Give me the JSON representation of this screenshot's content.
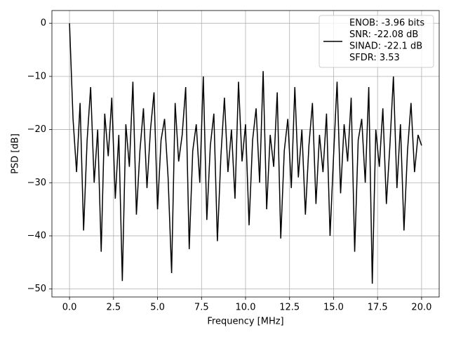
{
  "chart_data": {
    "type": "line",
    "xlabel": "Frequency [MHz]",
    "ylabel": "PSD [dB]",
    "x": [
      0,
      0.2,
      0.4,
      0.6,
      0.8,
      1,
      1.2,
      1.4,
      1.6,
      1.8,
      2,
      2.2,
      2.4,
      2.6,
      2.8,
      3,
      3.2,
      3.4,
      3.6,
      3.8,
      4,
      4.2,
      4.4,
      4.6,
      4.8,
      5,
      5.2,
      5.4,
      5.6,
      5.8,
      6,
      6.2,
      6.4,
      6.6,
      6.8,
      7,
      7.2,
      7.4,
      7.6,
      7.8,
      8,
      8.2,
      8.4,
      8.6,
      8.8,
      9,
      9.2,
      9.4,
      9.6,
      9.8,
      10,
      10.2,
      10.4,
      10.6,
      10.8,
      11,
      11.2,
      11.4,
      11.6,
      11.8,
      12,
      12.2,
      12.4,
      12.6,
      12.8,
      13,
      13.2,
      13.4,
      13.6,
      13.8,
      14,
      14.2,
      14.4,
      14.6,
      14.8,
      15,
      15.2,
      15.4,
      15.6,
      15.8,
      16,
      16.2,
      16.4,
      16.6,
      16.8,
      17,
      17.2,
      17.4,
      17.6,
      17.8,
      18,
      18.2,
      18.4,
      18.6,
      18.8,
      19,
      19.2,
      19.4,
      19.6,
      19.8,
      20
    ],
    "series": [
      {
        "name": [
          "ENOB: -3.96 bits",
          "SNR: -22.08 dB",
          "SINAD: -22.1 dB",
          "SFDR: 3.53"
        ],
        "color": "#000000",
        "values": [
          0,
          -18,
          -28,
          -15,
          -39,
          -22,
          -12,
          -30,
          -20,
          -43,
          -17,
          -25,
          -14,
          -33,
          -21,
          -48.5,
          -19,
          -27,
          -11,
          -36,
          -24,
          -16,
          -31,
          -20,
          -13,
          -35,
          -22,
          -18,
          -29,
          -47,
          -15,
          -26,
          -21,
          -12,
          -42.5,
          -24,
          -19,
          -30,
          -10,
          -37,
          -23,
          -17,
          -41,
          -25,
          -14,
          -28,
          -20,
          -33,
          -11,
          -26,
          -19,
          -38,
          -22,
          -16,
          -30,
          -9,
          -35,
          -21,
          -27,
          -13,
          -40.5,
          -24,
          -18,
          -31,
          -12,
          -29,
          -20,
          -36,
          -23,
          -15,
          -34,
          -21,
          -28,
          -17,
          -40,
          -25,
          -11,
          -32,
          -19,
          -26,
          -14,
          -43,
          -22,
          -18,
          -30,
          -12,
          -49,
          -20,
          -27,
          -16,
          -34,
          -23,
          -10,
          -31,
          -19,
          -39,
          -24,
          -15,
          -28,
          -21,
          -23
        ]
      }
    ],
    "xlim": [
      -1,
      21
    ],
    "ylim": [
      -51.5,
      2.4
    ],
    "xticks": [
      {
        "value": 0,
        "label": "0.0"
      },
      2.5,
      {
        "value": 5,
        "label": "5.0"
      },
      7.5,
      {
        "value": 10,
        "label": "10.0"
      },
      12.5,
      {
        "value": 15,
        "label": "15.0"
      },
      17.5,
      {
        "value": 20,
        "label": "20.0"
      }
    ],
    "yticks": [
      {
        "value": -50,
        "label": "−50"
      },
      {
        "value": -40,
        "label": "−40"
      },
      {
        "value": -30,
        "label": "−30"
      },
      {
        "value": -20,
        "label": "−20"
      },
      {
        "value": -10,
        "label": "−10"
      },
      0
    ],
    "grid": true,
    "legend": "upper right"
  }
}
